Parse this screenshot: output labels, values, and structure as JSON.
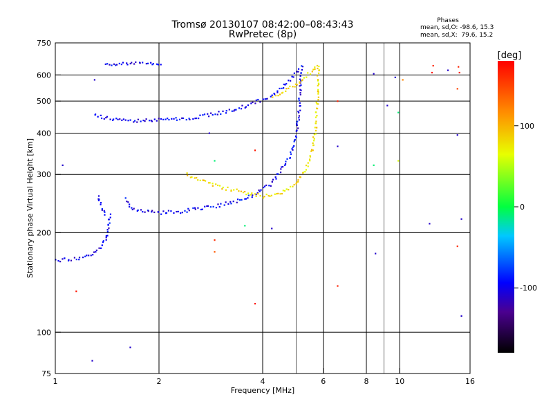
{
  "chart_data": {
    "type": "scatter",
    "title": "Tromsø 20130107 08:42:00–08:43:43",
    "subtitle": "RwPretec (8p)",
    "xlabel": "Frequency [MHz]",
    "ylabel": "Stationary phase Virtual Height [km]",
    "x_scale": "log",
    "y_scale": "log",
    "xlim": [
      1,
      16
    ],
    "ylim": [
      75,
      750
    ],
    "x_ticks": [
      1,
      2,
      4,
      6,
      8,
      10,
      16
    ],
    "x_tick_labels": [
      "1",
      "2",
      "4",
      "6",
      "8",
      "10",
      "16"
    ],
    "y_ticks": [
      75,
      100,
      200,
      300,
      400,
      500,
      600,
      750
    ],
    "y_tick_labels": [
      "75",
      "100",
      "200",
      "300",
      "400",
      "500",
      "600",
      "750"
    ],
    "x_gridlines": [
      2,
      4,
      6,
      8,
      10
    ],
    "x_minor_lines": [
      5,
      9
    ],
    "y_gridlines": [
      100,
      200,
      300,
      400,
      500,
      600
    ],
    "grid": true,
    "stats": {
      "heading": "Phases",
      "line_o": "mean, sd,O: -98.6, 15.3",
      "line_x": "mean, sd,X:  79.6, 15.2"
    },
    "colorbar": {
      "label": "[deg]",
      "range": [
        -180,
        180
      ],
      "ticks": [
        100,
        0,
        -100
      ],
      "tick_labels": [
        "100",
        "0",
        "-100"
      ]
    },
    "series": [
      {
        "mode": "O",
        "phase": -98,
        "color": "#1a1adf",
        "segments": [
          [
            [
              1.0,
              165
            ],
            [
              1.1,
              166
            ],
            [
              1.2,
              168
            ],
            [
              1.28,
              172
            ],
            [
              1.35,
              180
            ],
            [
              1.4,
              190
            ],
            [
              1.42,
              200
            ],
            [
              1.43,
              215
            ],
            [
              1.44,
              230
            ]
          ],
          [
            [
              1.33,
              258
            ],
            [
              1.35,
              245
            ],
            [
              1.38,
              232
            ],
            [
              1.4,
              222
            ]
          ],
          [
            [
              1.6,
              255
            ],
            [
              1.65,
              242
            ],
            [
              1.7,
              235
            ],
            [
              1.8,
              232
            ],
            [
              2.0,
              230
            ],
            [
              2.3,
              232
            ],
            [
              2.6,
              236
            ],
            [
              3.0,
              242
            ],
            [
              3.4,
              250
            ],
            [
              3.8,
              262
            ],
            [
              4.2,
              280
            ],
            [
              4.5,
              305
            ],
            [
              4.8,
              340
            ],
            [
              5.0,
              390
            ],
            [
              5.1,
              460
            ],
            [
              5.15,
              560
            ],
            [
              5.2,
              640
            ]
          ],
          [
            [
              1.3,
              455
            ],
            [
              1.4,
              445
            ],
            [
              1.5,
              438
            ],
            [
              1.7,
              435
            ],
            [
              2.0,
              438
            ],
            [
              2.5,
              445
            ],
            [
              3.0,
              460
            ],
            [
              3.5,
              480
            ],
            [
              4.0,
              505
            ],
            [
              4.4,
              530
            ],
            [
              4.7,
              570
            ],
            [
              5.0,
              610
            ],
            [
              5.2,
              640
            ]
          ],
          [
            [
              1.4,
              645
            ],
            [
              1.6,
              648
            ],
            [
              1.8,
              650
            ],
            [
              2.05,
              652
            ]
          ]
        ]
      },
      {
        "mode": "X",
        "phase": 80,
        "color": "#c8f02a",
        "segments": [
          [
            [
              2.4,
              300
            ],
            [
              2.7,
              285
            ],
            [
              3.0,
              275
            ],
            [
              3.5,
              265
            ],
            [
              4.0,
              258
            ],
            [
              4.5,
              262
            ],
            [
              5.0,
              280
            ],
            [
              5.4,
              320
            ],
            [
              5.6,
              370
            ],
            [
              5.7,
              420
            ],
            [
              5.75,
              480
            ],
            [
              5.8,
              560
            ],
            [
              5.8,
              650
            ]
          ],
          [
            [
              4.3,
              520
            ],
            [
              4.7,
              540
            ],
            [
              5.0,
              560
            ],
            [
              5.3,
              590
            ],
            [
              5.6,
              620
            ],
            [
              5.8,
              645
            ]
          ]
        ]
      }
    ],
    "scattered_points": [
      {
        "x": 1.15,
        "y": 133,
        "phase": 170
      },
      {
        "x": 1.05,
        "y": 320,
        "phase": -110
      },
      {
        "x": 1.3,
        "y": 580,
        "phase": -110
      },
      {
        "x": 1.65,
        "y": 90,
        "phase": -110
      },
      {
        "x": 1.28,
        "y": 82,
        "phase": -110
      },
      {
        "x": 2.8,
        "y": 400,
        "phase": -110
      },
      {
        "x": 2.9,
        "y": 190,
        "phase": 160
      },
      {
        "x": 2.9,
        "y": 175,
        "phase": 140
      },
      {
        "x": 3.8,
        "y": 122,
        "phase": 170
      },
      {
        "x": 3.8,
        "y": 355,
        "phase": 170
      },
      {
        "x": 6.6,
        "y": 500,
        "phase": 165
      },
      {
        "x": 6.6,
        "y": 138,
        "phase": 165
      },
      {
        "x": 6.6,
        "y": 365,
        "phase": -110
      },
      {
        "x": 8.5,
        "y": 173,
        "phase": -110
      },
      {
        "x": 8.4,
        "y": 320,
        "phase": -10
      },
      {
        "x": 9.2,
        "y": 485,
        "phase": -110
      },
      {
        "x": 9.7,
        "y": 590,
        "phase": -110
      },
      {
        "x": 9.9,
        "y": 330,
        "phase": 60
      },
      {
        "x": 10.2,
        "y": 580,
        "phase": 120
      },
      {
        "x": 12.4,
        "y": 610,
        "phase": 170
      },
      {
        "x": 12.5,
        "y": 640,
        "phase": 165
      },
      {
        "x": 13.8,
        "y": 620,
        "phase": -110
      },
      {
        "x": 14.8,
        "y": 635,
        "phase": 165
      },
      {
        "x": 14.9,
        "y": 610,
        "phase": 170
      },
      {
        "x": 14.7,
        "y": 545,
        "phase": 150
      },
      {
        "x": 14.7,
        "y": 395,
        "phase": -110
      },
      {
        "x": 15.1,
        "y": 220,
        "phase": -110
      },
      {
        "x": 14.7,
        "y": 182,
        "phase": 160
      },
      {
        "x": 15.1,
        "y": 112,
        "phase": -110
      },
      {
        "x": 12.2,
        "y": 213,
        "phase": -110
      },
      {
        "x": 8.4,
        "y": 605,
        "phase": -110
      },
      {
        "x": 9.9,
        "y": 462,
        "phase": -10
      },
      {
        "x": 2.9,
        "y": 330,
        "phase": -10
      },
      {
        "x": 4.25,
        "y": 206,
        "phase": -110
      },
      {
        "x": 3.55,
        "y": 210,
        "phase": -10
      }
    ]
  }
}
